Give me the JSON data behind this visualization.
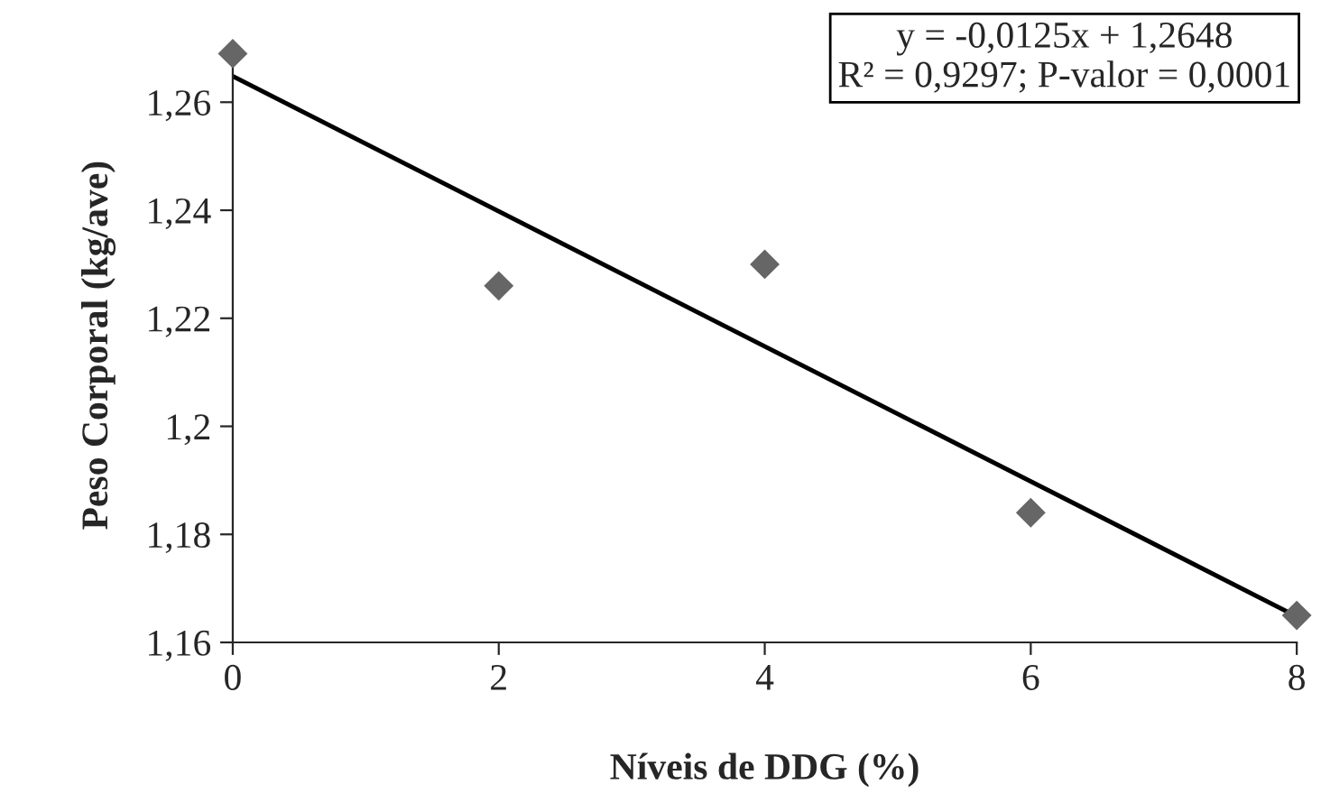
{
  "chart_data": {
    "type": "scatter",
    "xlabel": "Níveis de DDG (%)",
    "ylabel": "Peso Corporal (kg/ave)",
    "annotations": [
      "y = -0,0125x + 1,2648\nR² = 0,9297; P-valor = 0,0001"
    ],
    "series": [
      {
        "color": "#666666",
        "marker": "diamond",
        "x": [
          0,
          2,
          4,
          6,
          8
        ],
        "values": [
          1.269,
          1.226,
          1.23,
          1.184,
          1.165
        ]
      },
      {
        "type": "line",
        "color": "#000000",
        "marker": "none",
        "line_style": "solid",
        "x": [
          0,
          8
        ],
        "values": [
          1.2648,
          1.1648
        ]
      }
    ],
    "xlim": [
      0,
      8
    ],
    "xticks": [
      0,
      2,
      4,
      6,
      8
    ],
    "ylim": [
      1.16,
      1.27
    ],
    "yticks": [
      {
        "value": 1.16,
        "label": "1,16"
      },
      {
        "value": 1.18,
        "label": "1,18"
      },
      {
        "value": 1.2,
        "label": "1,2"
      },
      {
        "value": 1.22,
        "label": "1,22"
      },
      {
        "value": 1.24,
        "label": "1,24"
      },
      {
        "value": 1.26,
        "label": "1,26"
      }
    ],
    "grid": false,
    "legend": false
  }
}
